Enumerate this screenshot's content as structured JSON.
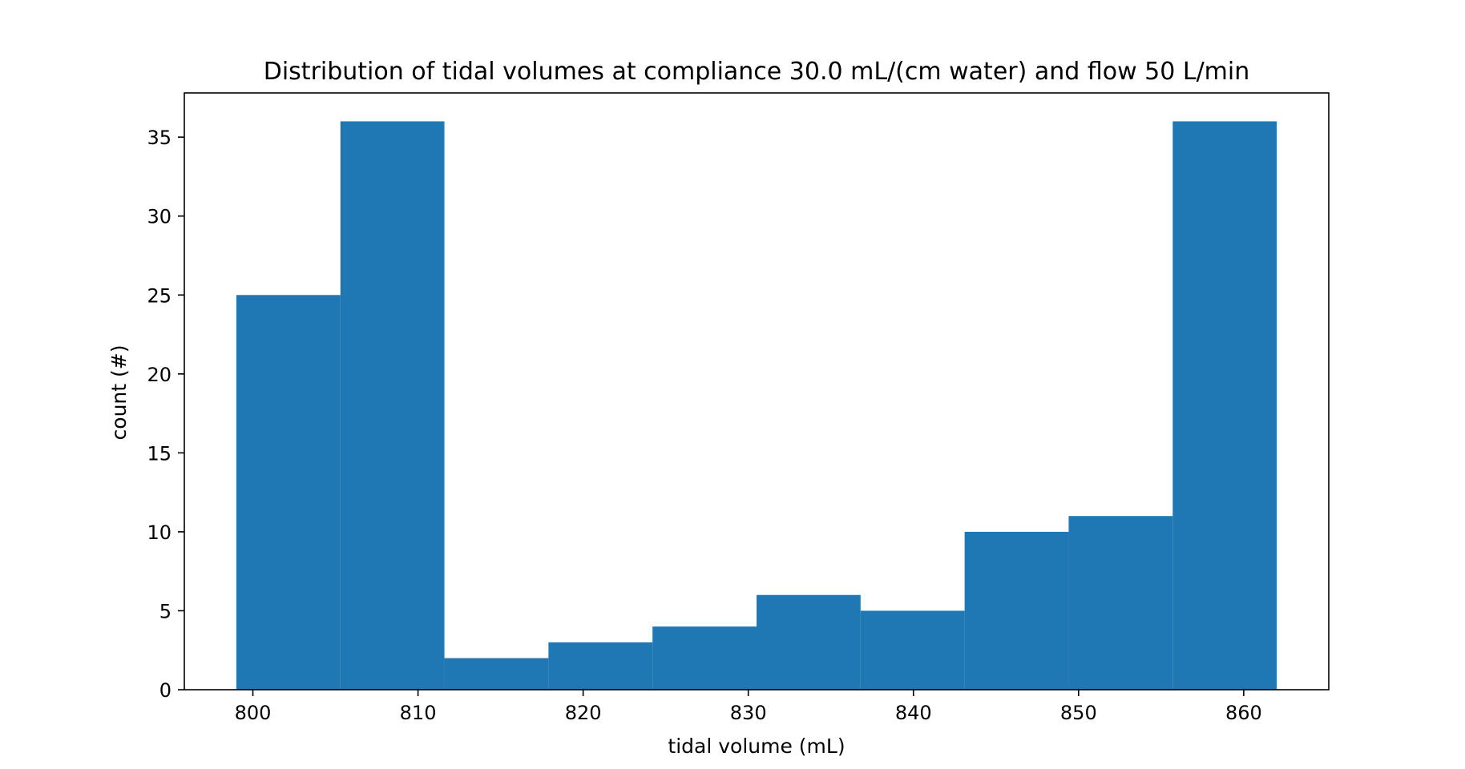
{
  "chart_data": {
    "type": "bar",
    "subtype": "histogram",
    "title": "Distribution of tidal volumes at compliance 30.0 mL/(cm water) and flow 50 L/min",
    "xlabel": "tidal volume (mL)",
    "ylabel": "count (#)",
    "bin_edges": [
      799.0,
      805.3,
      811.6,
      817.9,
      824.2,
      830.5,
      836.8,
      843.1,
      849.4,
      855.7,
      862.0
    ],
    "values": [
      25,
      36,
      2,
      3,
      4,
      6,
      5,
      10,
      11,
      36
    ],
    "xlim": [
      795.85,
      865.15
    ],
    "ylim": [
      0,
      37.8
    ],
    "xticks": [
      800,
      810,
      820,
      830,
      840,
      850,
      860
    ],
    "yticks": [
      0,
      5,
      10,
      15,
      20,
      25,
      30,
      35
    ],
    "bar_color": "#1f77b4",
    "grid": false,
    "legend": "none"
  }
}
